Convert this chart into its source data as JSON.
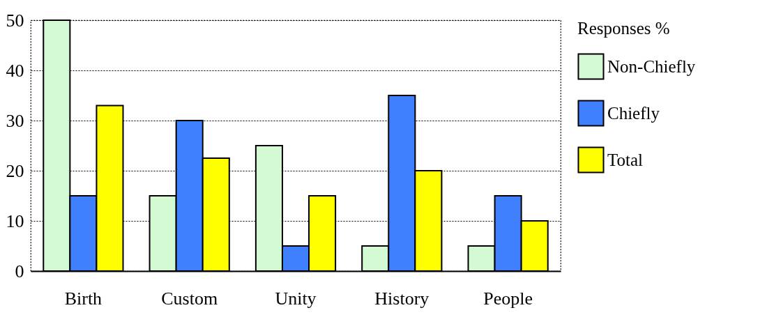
{
  "chart_data": {
    "type": "bar",
    "categories": [
      "Birth",
      "Custom",
      "Unity",
      "History",
      "People"
    ],
    "series": [
      {
        "name": "Non-Chiefly",
        "color": "#d4fad4",
        "values": [
          50,
          15,
          25,
          5,
          5
        ]
      },
      {
        "name": "Chiefly",
        "color": "#4080ff",
        "values": [
          15,
          30,
          5,
          35,
          15
        ]
      },
      {
        "name": "Total",
        "color": "#ffff00",
        "values": [
          33,
          22.5,
          15,
          20,
          10
        ]
      }
    ],
    "legend_title": "Responses %",
    "legend": "right",
    "ylim": [
      0,
      50
    ],
    "yticks": [
      0,
      10,
      20,
      30,
      40,
      50
    ],
    "grid": "y"
  }
}
